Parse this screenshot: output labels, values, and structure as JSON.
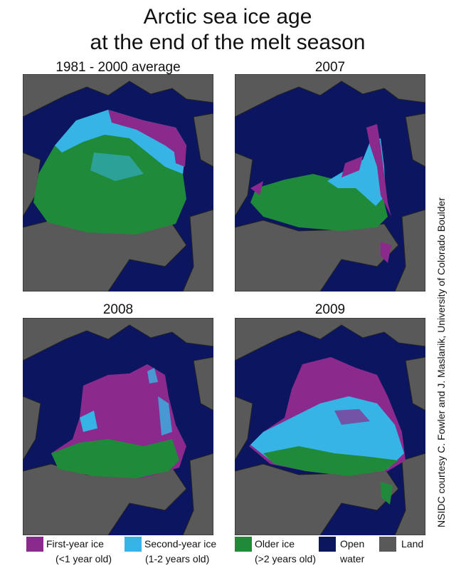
{
  "title": [
    "Arctic sea ice age",
    "at the end of the melt season"
  ],
  "panels": [
    {
      "label": "1981 - 2000 average"
    },
    {
      "label": "2007"
    },
    {
      "label": "2008"
    },
    {
      "label": "2009"
    }
  ],
  "credit": "NSIDC courtesy C. Fowler and J. Maslanik, University of Colorado Boulder",
  "legend": [
    {
      "line1": "First-year ice",
      "line2": "(<1 year old)",
      "color": "#8b2a8c"
    },
    {
      "line1": "Second-year ice",
      "line2": "(1-2 years old)",
      "color": "#36b4e5"
    },
    {
      "line1": "Older ice",
      "line2": "(>2 years old)",
      "color": "#1f8a3a"
    },
    {
      "line1": "Open",
      "line2": "water",
      "color": "#0b1560"
    },
    {
      "line1": "Land",
      "line2": "",
      "color": "#595959"
    }
  ],
  "colors": {
    "first_year_ice": "#8b2a8c",
    "second_year_ice": "#36b4e5",
    "older_ice": "#1f8a3a",
    "open_water": "#0b1560",
    "land": "#595959"
  }
}
